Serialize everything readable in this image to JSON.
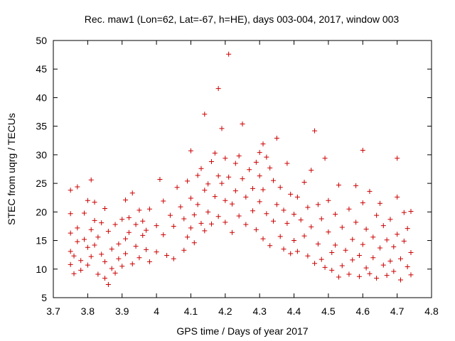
{
  "chart_data": {
    "type": "scatter",
    "title": "Rec. maw1 (Lon=62, Lat=-67, h=HE), days 003-004, 2017, window 003",
    "xlabel": "GPS time / Days of year 2017",
    "ylabel": "STEC from uqrg / TECUs",
    "xlim": [
      3.7,
      4.8
    ],
    "ylim": [
      5,
      50
    ],
    "xticks": [
      "3.7",
      "3.8",
      "3.9",
      "4",
      "4.1",
      "4.2",
      "4.3",
      "4.4",
      "4.5",
      "4.6",
      "4.7",
      "4.8"
    ],
    "yticks": [
      "5",
      "10",
      "15",
      "20",
      "25",
      "30",
      "35",
      "40",
      "45",
      "50"
    ],
    "grid": false,
    "marker": "+",
    "color": "#cc0000",
    "series": [
      {
        "points": [
          [
            3.75,
            23.8
          ],
          [
            3.75,
            19.7
          ],
          [
            3.75,
            16.3
          ],
          [
            3.75,
            13.1
          ],
          [
            3.75,
            10.8
          ],
          [
            3.76,
            9.2
          ],
          [
            3.76,
            12.3
          ],
          [
            3.77,
            24.4
          ],
          [
            3.77,
            17.2
          ],
          [
            3.77,
            14.8
          ],
          [
            3.78,
            11.5
          ],
          [
            3.78,
            9.8
          ],
          [
            3.79,
            19.8
          ],
          [
            3.79,
            15.2
          ],
          [
            3.8,
            22.0
          ],
          [
            3.8,
            13.8
          ],
          [
            3.8,
            10.7
          ],
          [
            3.81,
            25.6
          ],
          [
            3.81,
            16.9
          ],
          [
            3.81,
            12.2
          ],
          [
            3.82,
            21.7
          ],
          [
            3.82,
            18.5
          ],
          [
            3.82,
            14.2
          ],
          [
            3.83,
            9.1
          ],
          [
            3.83,
            15.6
          ],
          [
            3.84,
            18.1
          ],
          [
            3.84,
            12.6
          ],
          [
            3.85,
            20.6
          ],
          [
            3.85,
            11.3
          ],
          [
            3.85,
            8.4
          ],
          [
            3.86,
            16.6
          ],
          [
            3.86,
            7.3
          ],
          [
            3.87,
            13.5
          ],
          [
            3.87,
            10.1
          ],
          [
            3.88,
            17.8
          ],
          [
            3.88,
            9.3
          ],
          [
            3.89,
            14.4
          ],
          [
            3.89,
            11.8
          ],
          [
            3.9,
            18.7
          ],
          [
            3.9,
            10.5
          ],
          [
            3.91,
            22.1
          ],
          [
            3.91,
            15.3
          ],
          [
            3.91,
            12.7
          ],
          [
            3.92,
            19.0
          ],
          [
            3.92,
            16.4
          ],
          [
            3.93,
            23.3
          ],
          [
            3.93,
            10.9
          ],
          [
            3.94,
            17.8
          ],
          [
            3.94,
            14.0
          ],
          [
            3.95,
            20.3
          ],
          [
            3.95,
            12.0
          ],
          [
            3.96,
            18.4
          ],
          [
            3.96,
            15.9
          ],
          [
            3.97,
            13.4
          ],
          [
            3.97,
            16.8
          ],
          [
            3.98,
            20.5
          ],
          [
            3.98,
            11.3
          ],
          [
            4.0,
            17.6
          ],
          [
            4.0,
            13.0
          ],
          [
            4.01,
            25.7
          ],
          [
            4.02,
            21.9
          ],
          [
            4.02,
            16.0
          ],
          [
            4.03,
            12.4
          ],
          [
            4.04,
            19.4
          ],
          [
            4.05,
            17.5
          ],
          [
            4.05,
            11.8
          ],
          [
            4.06,
            24.3
          ],
          [
            4.07,
            20.9
          ],
          [
            4.08,
            18.8
          ],
          [
            4.08,
            13.3
          ],
          [
            4.09,
            25.4
          ],
          [
            4.09,
            15.6
          ],
          [
            4.1,
            30.7
          ],
          [
            4.1,
            22.4
          ],
          [
            4.1,
            17.2
          ],
          [
            4.11,
            19.5
          ],
          [
            4.11,
            14.6
          ],
          [
            4.12,
            26.4
          ],
          [
            4.12,
            21.3
          ],
          [
            4.13,
            27.6
          ],
          [
            4.13,
            18.0
          ],
          [
            4.14,
            37.1
          ],
          [
            4.14,
            23.8
          ],
          [
            4.14,
            16.7
          ],
          [
            4.15,
            24.9
          ],
          [
            4.15,
            20.0
          ],
          [
            4.16,
            28.8
          ],
          [
            4.16,
            17.9
          ],
          [
            4.17,
            30.3
          ],
          [
            4.17,
            22.7
          ],
          [
            4.18,
            26.3
          ],
          [
            4.18,
            41.6
          ],
          [
            4.18,
            19.2
          ],
          [
            4.19,
            34.6
          ],
          [
            4.19,
            25.0
          ],
          [
            4.2,
            29.4
          ],
          [
            4.2,
            22.0
          ],
          [
            4.2,
            18.2
          ],
          [
            4.21,
            47.6
          ],
          [
            4.21,
            26.1
          ],
          [
            4.22,
            21.4
          ],
          [
            4.22,
            16.4
          ],
          [
            4.23,
            28.5
          ],
          [
            4.23,
            23.7
          ],
          [
            4.24,
            29.8
          ],
          [
            4.24,
            19.3
          ],
          [
            4.25,
            35.4
          ],
          [
            4.25,
            25.8
          ],
          [
            4.26,
            22.6
          ],
          [
            4.26,
            17.8
          ],
          [
            4.27,
            27.4
          ],
          [
            4.28,
            24.1
          ],
          [
            4.28,
            20.2
          ],
          [
            4.29,
            28.7
          ],
          [
            4.29,
            16.9
          ],
          [
            4.3,
            30.4
          ],
          [
            4.3,
            26.3
          ],
          [
            4.3,
            21.8
          ],
          [
            4.31,
            31.9
          ],
          [
            4.31,
            23.9
          ],
          [
            4.31,
            15.3
          ],
          [
            4.32,
            29.6
          ],
          [
            4.32,
            19.7
          ],
          [
            4.33,
            27.7
          ],
          [
            4.33,
            14.1
          ],
          [
            4.34,
            25.5
          ],
          [
            4.34,
            18.4
          ],
          [
            4.35,
            32.9
          ],
          [
            4.35,
            21.3
          ],
          [
            4.36,
            24.3
          ],
          [
            4.36,
            15.7
          ],
          [
            4.37,
            20.3
          ],
          [
            4.37,
            13.5
          ],
          [
            4.38,
            28.5
          ],
          [
            4.38,
            18.0
          ],
          [
            4.39,
            23.1
          ],
          [
            4.39,
            12.7
          ],
          [
            4.4,
            19.6
          ],
          [
            4.4,
            15.0
          ],
          [
            4.41,
            22.6
          ],
          [
            4.41,
            13.1
          ],
          [
            4.42,
            18.6
          ],
          [
            4.43,
            25.2
          ],
          [
            4.43,
            15.8
          ],
          [
            4.44,
            20.8
          ],
          [
            4.44,
            12.3
          ],
          [
            4.45,
            27.3
          ],
          [
            4.45,
            17.4
          ],
          [
            4.46,
            34.2
          ],
          [
            4.46,
            11.0
          ],
          [
            4.47,
            21.3
          ],
          [
            4.47,
            14.4
          ],
          [
            4.48,
            18.8
          ],
          [
            4.48,
            11.7
          ],
          [
            4.49,
            29.4
          ],
          [
            4.49,
            10.3
          ],
          [
            4.5,
            22.0
          ],
          [
            4.5,
            16.5
          ],
          [
            4.51,
            12.9
          ],
          [
            4.51,
            9.8
          ],
          [
            4.52,
            19.6
          ],
          [
            4.52,
            14.2
          ],
          [
            4.53,
            24.7
          ],
          [
            4.53,
            8.6
          ],
          [
            4.54,
            17.3
          ],
          [
            4.54,
            10.6
          ],
          [
            4.55,
            13.3
          ],
          [
            4.56,
            20.5
          ],
          [
            4.56,
            9.1
          ],
          [
            4.57,
            15.2
          ],
          [
            4.57,
            11.6
          ],
          [
            4.58,
            24.6
          ],
          [
            4.58,
            18.2
          ],
          [
            4.59,
            12.4
          ],
          [
            4.59,
            8.7
          ],
          [
            4.6,
            30.8
          ],
          [
            4.6,
            21.6
          ],
          [
            4.6,
            14.3
          ],
          [
            4.61,
            10.2
          ],
          [
            4.61,
            17.0
          ],
          [
            4.62,
            23.6
          ],
          [
            4.62,
            9.2
          ],
          [
            4.63,
            12.0
          ],
          [
            4.63,
            15.6
          ],
          [
            4.64,
            19.4
          ],
          [
            4.64,
            8.4
          ],
          [
            4.65,
            21.5
          ],
          [
            4.65,
            13.7
          ],
          [
            4.66,
            10.7
          ],
          [
            4.66,
            17.6
          ],
          [
            4.67,
            8.9
          ],
          [
            4.67,
            15.1
          ],
          [
            4.68,
            18.7
          ],
          [
            4.68,
            11.4
          ],
          [
            4.69,
            13.9
          ],
          [
            4.69,
            9.6
          ],
          [
            4.7,
            22.6
          ],
          [
            4.7,
            29.4
          ],
          [
            4.7,
            16.1
          ],
          [
            4.71,
            11.8
          ],
          [
            4.71,
            8.1
          ],
          [
            4.72,
            19.9
          ],
          [
            4.72,
            14.9
          ],
          [
            4.73,
            10.4
          ],
          [
            4.73,
            17.1
          ],
          [
            4.74,
            12.9
          ],
          [
            4.74,
            9.0
          ],
          [
            4.74,
            20.1
          ]
        ]
      }
    ]
  }
}
